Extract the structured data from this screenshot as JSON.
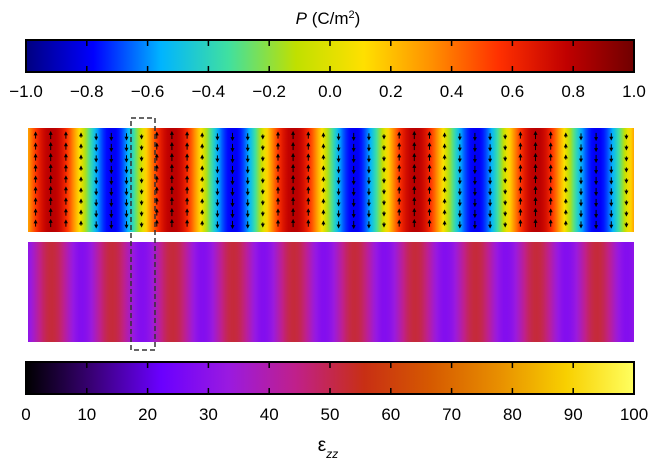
{
  "chart_data": [
    {
      "type": "heatmap",
      "name": "polarization-map",
      "colorbar": {
        "label_italic": "P",
        "label_units": " (C/m",
        "label_sup": "2",
        "label_close": ")",
        "range": [
          -1.0,
          1.0
        ],
        "ticks": [
          "−1.0",
          "−0.8",
          "−0.6",
          "−0.4",
          "−0.2",
          "0.0",
          "0.2",
          "0.4",
          "0.6",
          "0.8",
          "1.0"
        ],
        "tick_values": [
          -1.0,
          -0.8,
          -0.6,
          -0.4,
          -0.2,
          0.0,
          0.2,
          0.4,
          0.6,
          0.8,
          1.0
        ],
        "colormap": [
          "#000080",
          "#0000ff",
          "#00b4ff",
          "#40e0a0",
          "#c0e000",
          "#ffe000",
          "#ff9000",
          "#ff3000",
          "#c00000",
          "#700000"
        ]
      },
      "domains": {
        "count": 10,
        "pattern": "alternating up/down",
        "start_sign": 1,
        "peak_value": 0.8,
        "arrow_rows": 9,
        "arrow_cols_per_domain": 4
      }
    },
    {
      "type": "heatmap",
      "name": "strain-map",
      "colorbar": {
        "label_base": "ε",
        "label_sub": "zz",
        "range": [
          0,
          100
        ],
        "ticks": [
          "0",
          "10",
          "20",
          "30",
          "40",
          "50",
          "60",
          "70",
          "80",
          "90",
          "100"
        ],
        "tick_values": [
          0,
          10,
          20,
          30,
          40,
          50,
          60,
          70,
          80,
          90,
          100
        ],
        "colormap": [
          "#000000",
          "#3a0078",
          "#6a00ff",
          "#9a1ae0",
          "#c0208a",
          "#c82f14",
          "#d65a00",
          "#e88f00",
          "#f8d000",
          "#ffff60"
        ]
      },
      "bands": {
        "count": 20,
        "low_value": 28,
        "high_value": 52
      }
    }
  ],
  "annotation": {
    "type": "dashed-box",
    "spans": "one domain wall region across both maps"
  }
}
